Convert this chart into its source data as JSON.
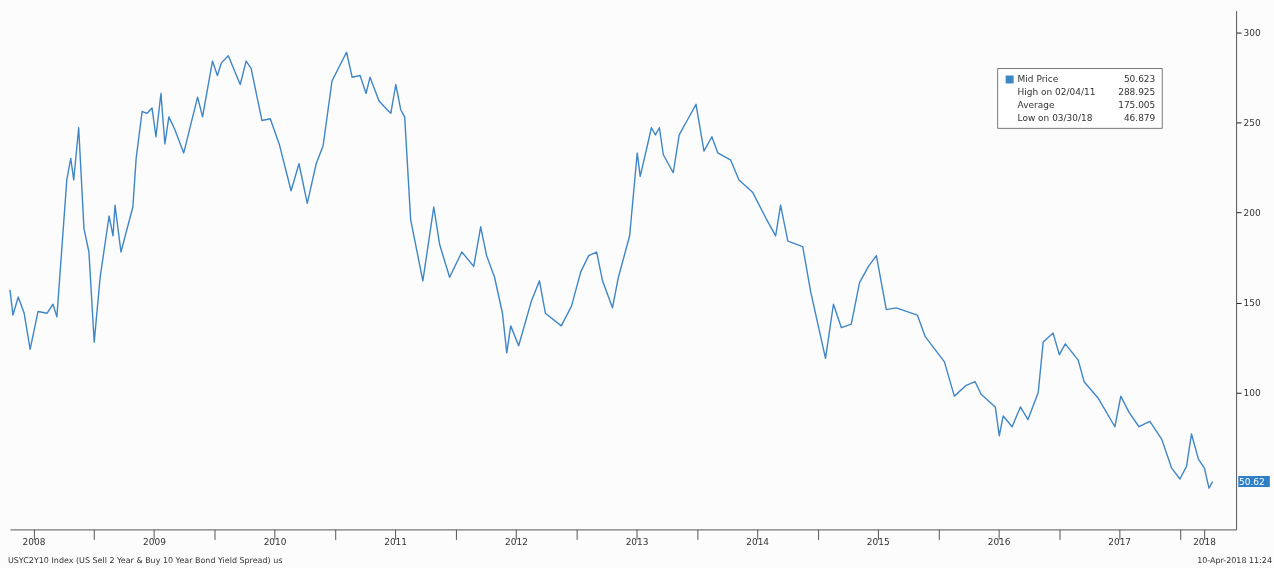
{
  "chart_data": {
    "type": "line",
    "x": [
      "2008-04-21",
      "2008-04-30",
      "2008-05-16",
      "2008-06-03",
      "2008-06-21",
      "2008-07-15",
      "2008-08-11",
      "2008-08-29",
      "2008-09-10",
      "2008-10-10",
      "2008-10-22",
      "2008-10-31",
      "2008-11-15",
      "2008-12-01",
      "2008-12-16",
      "2009-01-01",
      "2009-01-19",
      "2009-02-15",
      "2009-02-27",
      "2009-03-05",
      "2009-03-23",
      "2009-04-28",
      "2009-05-08",
      "2009-05-26",
      "2009-06-10",
      "2009-06-25",
      "2009-07-07",
      "2009-07-22",
      "2009-08-03",
      "2009-08-15",
      "2009-09-02",
      "2009-09-29",
      "2009-11-10",
      "2009-11-25",
      "2009-12-25",
      "2010-01-09",
      "2010-01-21",
      "2010-02-11",
      "2010-03-19",
      "2010-04-06",
      "2010-04-21",
      "2010-05-09",
      "2010-05-24",
      "2010-06-18",
      "2010-07-15",
      "2010-08-20",
      "2010-09-13",
      "2010-10-08",
      "2010-11-04",
      "2010-11-25",
      "2010-12-22",
      "2011-02-04",
      "2011-02-21",
      "2011-03-17",
      "2011-04-04",
      "2011-04-16",
      "2011-05-13",
      "2011-06-07",
      "2011-06-18",
      "2011-07-03",
      "2011-07-18",
      "2011-07-30",
      "2011-08-17",
      "2011-09-23",
      "2011-10-26",
      "2011-11-13",
      "2011-12-13",
      "2012-01-19",
      "2012-02-24",
      "2012-03-16",
      "2012-04-03",
      "2012-04-27",
      "2012-05-21",
      "2012-06-03",
      "2012-06-15",
      "2012-07-09",
      "2012-08-17",
      "2012-09-10",
      "2012-09-28",
      "2012-11-15",
      "2012-12-16",
      "2013-01-13",
      "2013-02-06",
      "2013-03-02",
      "2013-03-20",
      "2013-04-19",
      "2013-05-07",
      "2013-06-10",
      "2013-07-03",
      "2013-07-12",
      "2013-08-15",
      "2013-08-27",
      "2013-09-08",
      "2013-09-20",
      "2013-10-20",
      "2013-11-07",
      "2013-12-04",
      "2013-12-28",
      "2014-01-21",
      "2014-02-14",
      "2014-03-04",
      "2014-04-12",
      "2014-05-07",
      "2014-06-18",
      "2014-07-27",
      "2014-08-26",
      "2014-09-10",
      "2014-10-02",
      "2014-11-16",
      "2014-12-10",
      "2015-01-24",
      "2015-02-17",
      "2015-03-13",
      "2015-04-12",
      "2015-05-07",
      "2015-06-03",
      "2015-06-27",
      "2015-07-27",
      "2015-08-26",
      "2015-10-29",
      "2015-11-22",
      "2016-01-19",
      "2016-02-18",
      "2016-03-25",
      "2016-04-21",
      "2016-05-09",
      "2016-06-21",
      "2016-07-03",
      "2016-07-15",
      "2016-08-11",
      "2016-09-05",
      "2016-09-28",
      "2016-10-29",
      "2016-11-13",
      "2016-12-13",
      "2017-01-01",
      "2017-01-19",
      "2017-02-27",
      "2017-03-17",
      "2017-04-28",
      "2017-06-18",
      "2017-07-06",
      "2017-07-31",
      "2017-08-30",
      "2017-10-02",
      "2017-11-07",
      "2017-12-07",
      "2018-01-01",
      "2018-01-21",
      "2018-02-05",
      "2018-02-26",
      "2018-03-16",
      "2018-03-30",
      "2018-04-10"
    ],
    "series": [
      {
        "name": "Mid Price",
        "color": "#3f86c8",
        "values": [
          157,
          143,
          153,
          144,
          124,
          145,
          144,
          149,
          142,
          218,
          230,
          218,
          247,
          191,
          178,
          128,
          164,
          198,
          187,
          204,
          178,
          203,
          230,
          256,
          255,
          258,
          242,
          266,
          238,
          253,
          246,
          233,
          264,
          253,
          284,
          276,
          283,
          287,
          271,
          284,
          280,
          264,
          251,
          252,
          238,
          212,
          227,
          205,
          227,
          237,
          273,
          288.9,
          275,
          276,
          266,
          275,
          262,
          257,
          255,
          271,
          257,
          253,
          196,
          162,
          203,
          182,
          164,
          178,
          170,
          192,
          176,
          164,
          144,
          122,
          137,
          126,
          151,
          162,
          144,
          137,
          148,
          167,
          176,
          178,
          162,
          147,
          164,
          187,
          233,
          220,
          247,
          243,
          247,
          232,
          222,
          243,
          252,
          260,
          234,
          242,
          233,
          229,
          218,
          211,
          197,
          187,
          204,
          184,
          181,
          156,
          119,
          149,
          136,
          138,
          161,
          170,
          176,
          146,
          147,
          143,
          131,
          117,
          98,
          104,
          106,
          99,
          92,
          76,
          87,
          81,
          92,
          85,
          100,
          128,
          133,
          121,
          127,
          118,
          106,
          97,
          81,
          98,
          89,
          81,
          84,
          74,
          58,
          52,
          59,
          77,
          63,
          58,
          46.9,
          50.6
        ]
      }
    ],
    "xlim": [
      "2008-04-21",
      "2018-06-20"
    ],
    "xticks": [
      {
        "value": "2008-07-01",
        "label": "2008"
      },
      {
        "value": "2009-01-01",
        "label": null
      },
      {
        "value": "2009-07-01",
        "label": "2009"
      },
      {
        "value": "2010-01-01",
        "label": null
      },
      {
        "value": "2010-07-01",
        "label": "2010"
      },
      {
        "value": "2011-01-01",
        "label": null
      },
      {
        "value": "2011-07-01",
        "label": "2011"
      },
      {
        "value": "2012-01-01",
        "label": null
      },
      {
        "value": "2012-07-01",
        "label": "2012"
      },
      {
        "value": "2013-01-01",
        "label": null
      },
      {
        "value": "2013-07-01",
        "label": "2013"
      },
      {
        "value": "2014-01-01",
        "label": null
      },
      {
        "value": "2014-07-01",
        "label": "2014"
      },
      {
        "value": "2015-01-01",
        "label": null
      },
      {
        "value": "2015-07-01",
        "label": "2015"
      },
      {
        "value": "2016-01-01",
        "label": null
      },
      {
        "value": "2016-07-01",
        "label": "2016"
      },
      {
        "value": "2017-01-01",
        "label": null
      },
      {
        "value": "2017-07-01",
        "label": "2017"
      },
      {
        "value": "2018-01-01",
        "label": null
      },
      {
        "value": "2018-03-15",
        "label": "2018"
      }
    ],
    "ylim": [
      24,
      312
    ],
    "yticks": [
      100,
      150,
      200,
      250,
      300
    ],
    "grid": false,
    "legend": "top right",
    "annotations": [
      "USYC2Y10 Index (US Sell 2 Year & Buy 10 Year Bond Yield Spread) us",
      "10-Apr-2018 11:24",
      "50.623",
      "High on 02/04/11",
      "288.925",
      "Average",
      "175.005",
      "Low on 03/30/18",
      "46.879",
      "50.62"
    ]
  }
}
